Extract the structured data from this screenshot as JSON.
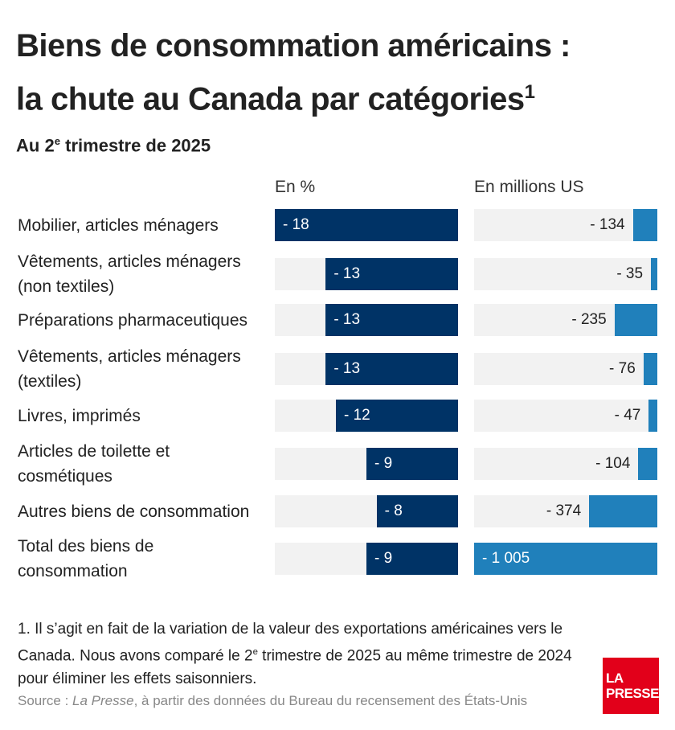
{
  "title_line1": "Biens de consommation américains :",
  "title_line2": "la chute au Canada par catégories",
  "title_sup": "1",
  "subtitle_pre": "Au 2",
  "subtitle_sup": "e",
  "subtitle_post": " trimestre de 2025",
  "colors": {
    "pct": "#003366",
    "usd": "#2080bb",
    "track": "#f2f2f2"
  },
  "chart_data": {
    "type": "bar",
    "title": "Biens de consommation américains : la chute au Canada par catégories",
    "categories": [
      [
        "Mobilier, articles ménagers"
      ],
      [
        "Vêtements, articles ménagers",
        "(non textiles)"
      ],
      [
        "Préparations pharmaceutiques"
      ],
      [
        "Vêtements, articles ménagers",
        "(textiles)"
      ],
      [
        "Livres, imprimés"
      ],
      [
        "Articles de toilette et",
        "cosmétiques"
      ],
      [
        "Autres biens de consommation"
      ],
      [
        "Total des biens de",
        "consommation"
      ]
    ],
    "series": [
      {
        "name": "En %",
        "values": [
          -18,
          -13,
          -13,
          -13,
          -12,
          -9,
          -8,
          -9
        ],
        "labels": [
          "- 18",
          "- 13",
          "- 13",
          "- 13",
          "- 12",
          "- 9",
          "- 8",
          "- 9"
        ],
        "max": 18
      },
      {
        "name": "En millions US",
        "values": [
          -134,
          -35,
          -235,
          -76,
          -47,
          -104,
          -374,
          -1005
        ],
        "labels": [
          "- 134",
          "- 35",
          "- 235",
          "- 76",
          "- 47",
          "- 104",
          "- 374",
          "- 1 005"
        ],
        "max": 1005
      }
    ]
  },
  "footnote_pre": "1. Il s’agit en fait de la variation de la valeur des exportations américaines vers le Canada. Nous avons comparé le 2",
  "footnote_sup": "e",
  "footnote_post": " trimestre de 2025 au même trimestre de 2024 pour éliminer les effets saisonniers.",
  "source_pre": "Source : ",
  "source_em": "La Presse",
  "source_post": ", à partir des données du Bureau du recensement des États-Unis",
  "logo": [
    "LA",
    "PRESSE"
  ]
}
